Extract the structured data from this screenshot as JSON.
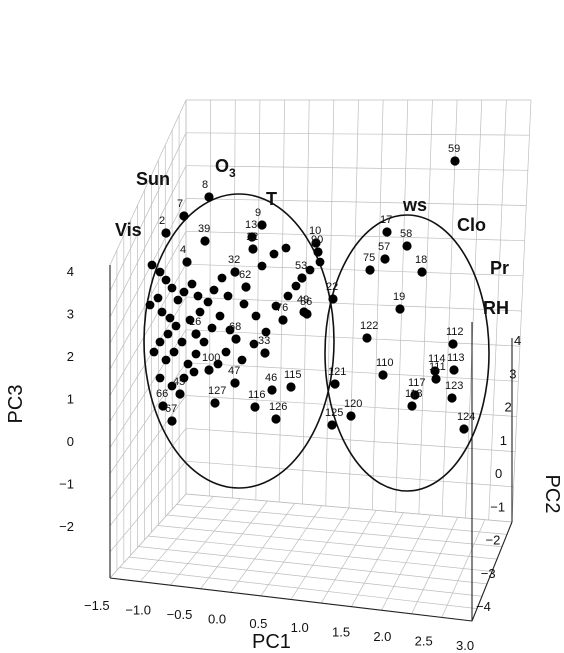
{
  "chart_data": {
    "type": "scatter",
    "title": "",
    "x_axis": {
      "label": "PC1",
      "ticks": [
        "−1.5",
        "−1.0",
        "−0.5",
        "0.0",
        "0.5",
        "1.0",
        "1.5",
        "2.0",
        "2.5",
        "3.0"
      ]
    },
    "y_axis": {
      "label": "PC2",
      "ticks": [
        "−4",
        "−3",
        "−2",
        "−1",
        "0",
        "1",
        "2",
        "3",
        "4"
      ]
    },
    "z_axis": {
      "label": "PC3",
      "ticks": [
        "−2",
        "−1",
        "0",
        "1",
        "2",
        "3",
        "4"
      ]
    },
    "grid": true,
    "variable_labels": [
      {
        "id": "sun",
        "text": "Sun"
      },
      {
        "id": "o3",
        "text": "O",
        "sub": "3"
      },
      {
        "id": "t",
        "text": "T"
      },
      {
        "id": "vis",
        "text": "Vis"
      },
      {
        "id": "ws",
        "text": "ws"
      },
      {
        "id": "clo",
        "text": "Clo"
      },
      {
        "id": "pr",
        "text": "Pr"
      },
      {
        "id": "rh",
        "text": "RH"
      }
    ],
    "groups": [
      "left-ellipse",
      "right-ellipse"
    ],
    "points": [
      {
        "label": "59"
      },
      {
        "label": "8"
      },
      {
        "label": "7"
      },
      {
        "label": "2"
      },
      {
        "label": "39"
      },
      {
        "label": "9"
      },
      {
        "label": "13"
      },
      {
        "label": "12"
      },
      {
        "label": "10"
      },
      {
        "label": "90"
      },
      {
        "label": "17"
      },
      {
        "label": "58"
      },
      {
        "label": "57"
      },
      {
        "label": "18"
      },
      {
        "label": "75"
      },
      {
        "label": "19"
      },
      {
        "label": "122"
      },
      {
        "label": "112"
      },
      {
        "label": "114"
      },
      {
        "label": "113"
      },
      {
        "label": "111"
      },
      {
        "label": "123"
      },
      {
        "label": "124"
      },
      {
        "label": "110"
      },
      {
        "label": "117"
      },
      {
        "label": "118"
      },
      {
        "label": "121"
      },
      {
        "label": "120"
      },
      {
        "label": "125"
      },
      {
        "label": "126"
      },
      {
        "label": "116"
      },
      {
        "label": "115"
      },
      {
        "label": "46"
      },
      {
        "label": "47"
      },
      {
        "label": "127"
      },
      {
        "label": "100"
      },
      {
        "label": "66"
      },
      {
        "label": "67"
      },
      {
        "label": "45"
      },
      {
        "label": "4"
      },
      {
        "label": "32"
      },
      {
        "label": "22"
      },
      {
        "label": "53"
      },
      {
        "label": "49"
      },
      {
        "label": "68"
      },
      {
        "label": "76"
      },
      {
        "label": "33"
      },
      {
        "label": "16"
      },
      {
        "label": "62"
      },
      {
        "label": "56"
      }
    ]
  }
}
